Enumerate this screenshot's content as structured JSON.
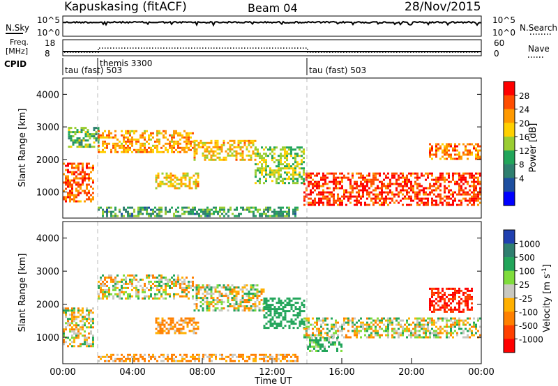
{
  "header": {
    "station": "Kapuskasing (fitACF)",
    "beam": "Beam 04",
    "date": "28/Nov/2015"
  },
  "status_panels": {
    "nsky": {
      "label": "N.Sky",
      "ticks": [
        "10^5",
        "10^0"
      ],
      "right_ticks": [
        "10^5",
        "10^0"
      ],
      "right_label": "N.Search"
    },
    "freq": {
      "label_line1": "Freq.",
      "label_line2": "[MHz]",
      "ticks": [
        "18",
        "8"
      ],
      "right_ticks": [
        "60",
        "0"
      ],
      "right_label": "Nave"
    },
    "cpid": {
      "label": "CPID",
      "segments": [
        {
          "name": "tau (fast) 503",
          "start_hour": 0.0
        },
        {
          "name": "themis 3300",
          "start_hour": 2.0
        },
        {
          "name": "tau (fast) 503",
          "start_hour": 14.0
        }
      ]
    }
  },
  "power_colorbar": {
    "label": "Power [dB]",
    "ticks": [
      "28",
      "24",
      "20",
      "16",
      "12",
      "8",
      "4"
    ],
    "colors": [
      "#ff0000",
      "#ff4d00",
      "#ff9900",
      "#ffd000",
      "#9acd32",
      "#22a55a",
      "#2f7f6f",
      "#1e4fa0",
      "#0000ff"
    ]
  },
  "velocity_colorbar": {
    "label": "Velocity [m s",
    "label_sup": "-1",
    "label_end": "]",
    "ticks": [
      "1000",
      "500",
      "100",
      "25",
      "-25",
      "-100",
      "-500",
      "-1000"
    ],
    "colors": [
      "#2040b0",
      "#2f7f6f",
      "#22a55a",
      "#7fdc3c",
      "#c8c8c0",
      "#ffb000",
      "#ff8000",
      "#ff4000",
      "#ff0000"
    ]
  },
  "chart_data": [
    {
      "type": "heatmap",
      "name": "power",
      "ylabel": "Slant Range [km]",
      "ylim": [
        200,
        4500
      ],
      "yticks": [
        1000,
        2000,
        3000,
        4000
      ],
      "xlim": [
        0,
        24
      ],
      "regions": [
        {
          "x": [
            0.0,
            1.7
          ],
          "y": [
            700,
            1900
          ],
          "power_db": 24
        },
        {
          "x": [
            0.3,
            2.0
          ],
          "y": [
            2400,
            3000
          ],
          "power_db": 12
        },
        {
          "x": [
            2.0,
            7.5
          ],
          "y": [
            2200,
            2900
          ],
          "power_db": 20
        },
        {
          "x": [
            7.5,
            11.0
          ],
          "y": [
            2000,
            2600
          ],
          "power_db": 18
        },
        {
          "x": [
            11.0,
            13.8
          ],
          "y": [
            1300,
            2400
          ],
          "power_db": 14
        },
        {
          "x": [
            5.3,
            7.8
          ],
          "y": [
            1100,
            1600
          ],
          "power_db": 18
        },
        {
          "x": [
            13.8,
            24.0
          ],
          "y": [
            600,
            1600
          ],
          "power_db": 26
        },
        {
          "x": [
            21.0,
            24.0
          ],
          "y": [
            2000,
            2500
          ],
          "power_db": 22
        },
        {
          "x": [
            2.0,
            13.5
          ],
          "y": [
            250,
            550
          ],
          "power_db": 10
        }
      ]
    },
    {
      "type": "heatmap",
      "name": "velocity",
      "ylabel": "Slant Range [km]",
      "ylim": [
        200,
        4500
      ],
      "yticks": [
        1000,
        2000,
        3000,
        4000
      ],
      "xlim": [
        0,
        24
      ],
      "xlabel": "Time UT",
      "xticks": [
        "00:00",
        "04:00",
        "08:00",
        "12:00",
        "16:00",
        "20:00",
        "00:00"
      ],
      "regions": [
        {
          "x": [
            0.0,
            1.7
          ],
          "y": [
            700,
            1900
          ],
          "velocity": 0
        },
        {
          "x": [
            2.0,
            7.5
          ],
          "y": [
            2200,
            2900
          ],
          "velocity": 0
        },
        {
          "x": [
            7.5,
            11.5
          ],
          "y": [
            1800,
            2600
          ],
          "velocity": 0
        },
        {
          "x": [
            11.5,
            13.8
          ],
          "y": [
            1300,
            2200
          ],
          "velocity": 200
        },
        {
          "x": [
            13.8,
            24.0
          ],
          "y": [
            1000,
            1600
          ],
          "velocity": 0
        },
        {
          "x": [
            14.0,
            16.0
          ],
          "y": [
            600,
            1000
          ],
          "velocity": 80
        },
        {
          "x": [
            5.3,
            7.8
          ],
          "y": [
            1100,
            1600
          ],
          "velocity": -100
        },
        {
          "x": [
            21.0,
            23.5
          ],
          "y": [
            1800,
            2500
          ],
          "velocity": -700
        },
        {
          "x": [
            2.0,
            13.5
          ],
          "y": [
            250,
            500
          ],
          "velocity": -80
        }
      ]
    }
  ]
}
